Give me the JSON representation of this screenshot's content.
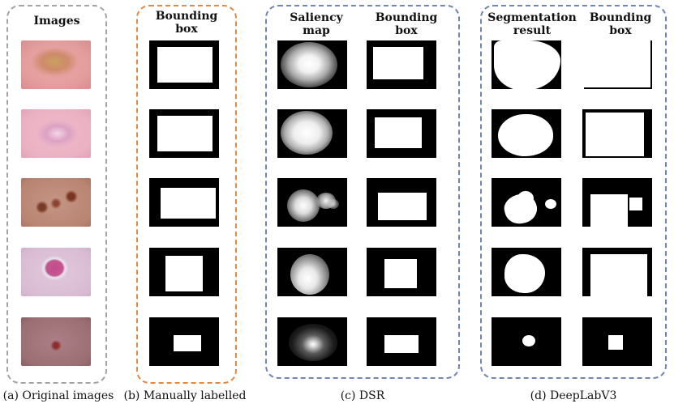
{
  "panels": {
    "a": {
      "headers": [
        "Images"
      ],
      "caption": "(a) Original images",
      "border_color": "#a3a3a3"
    },
    "b": {
      "headers": [
        "Bounding\nbox"
      ],
      "caption": "(b) Manually labelled",
      "border_color": "#e08a48"
    },
    "c": {
      "headers": [
        "Saliency\nmap",
        "Bounding\nbox"
      ],
      "caption": "(c) DSR",
      "border_color": "#6f86b3"
    },
    "d": {
      "headers": [
        "Segmentation\nresult",
        "Bounding\nbox"
      ],
      "caption": "(d) DeepLabV3",
      "border_color": "#6f86b3"
    }
  },
  "colors": {
    "mask_background": "#000000",
    "mask_foreground": "#ffffff",
    "skin_tones": [
      "#e9a6a8",
      "#ecb3c6",
      "#b98472",
      "#d9bcd3",
      "#9b6e73"
    ]
  }
}
